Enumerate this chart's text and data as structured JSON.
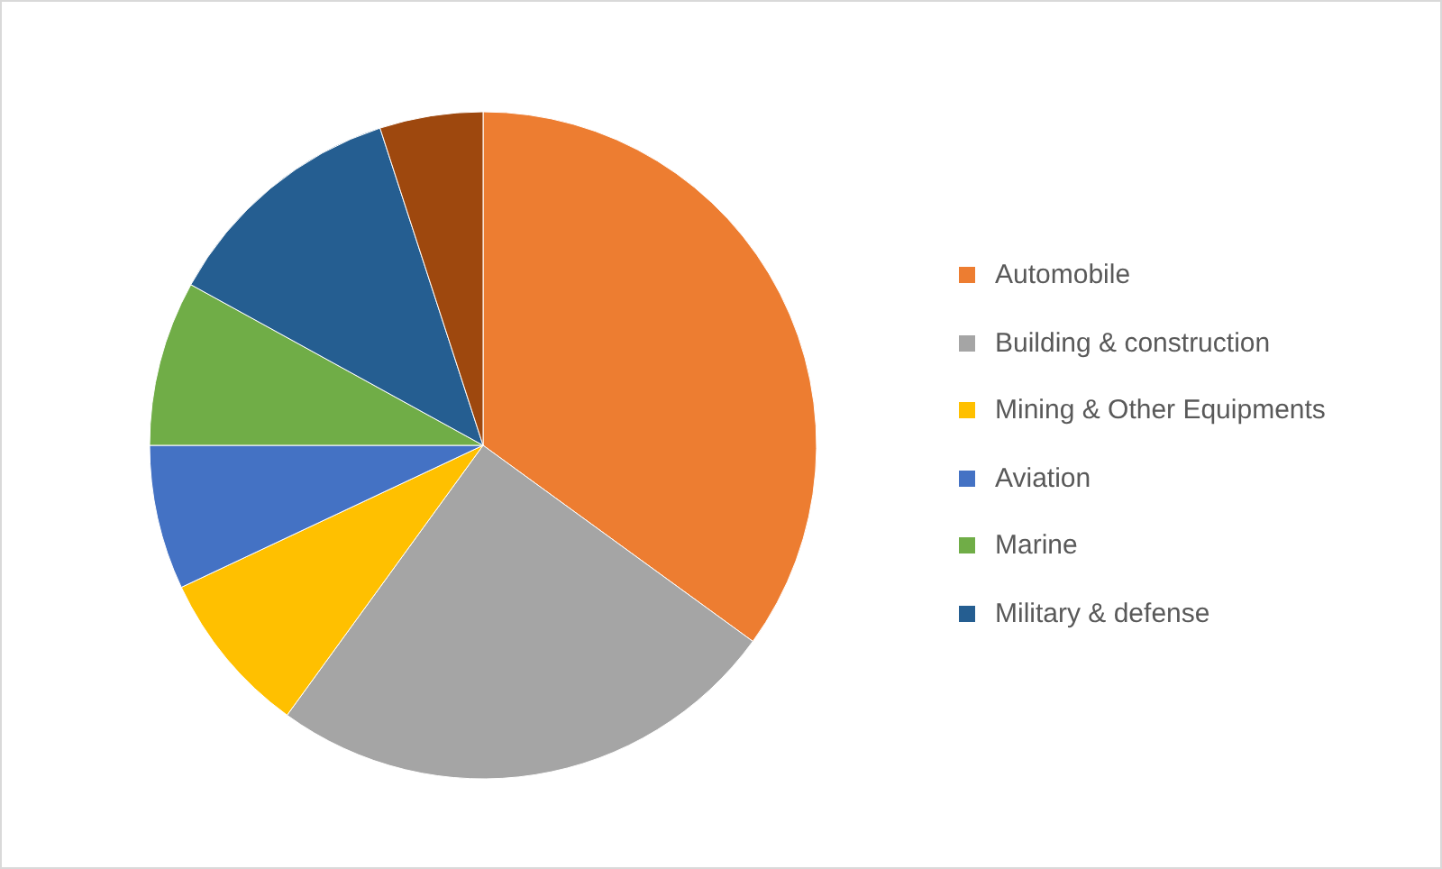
{
  "chart_data": {
    "type": "pie",
    "categories": [
      "Automobile",
      "Building & construction",
      "Mining & Other Equipments",
      "Aviation",
      "Marine",
      "Military & defense",
      null
    ],
    "values": [
      35,
      25,
      8,
      7,
      8,
      12,
      5
    ],
    "colors": [
      "#ed7d31",
      "#a5a5a5",
      "#ffc000",
      "#4472c4",
      "#70ad47",
      "#255e91",
      "#9e480e"
    ],
    "legend": "right"
  }
}
